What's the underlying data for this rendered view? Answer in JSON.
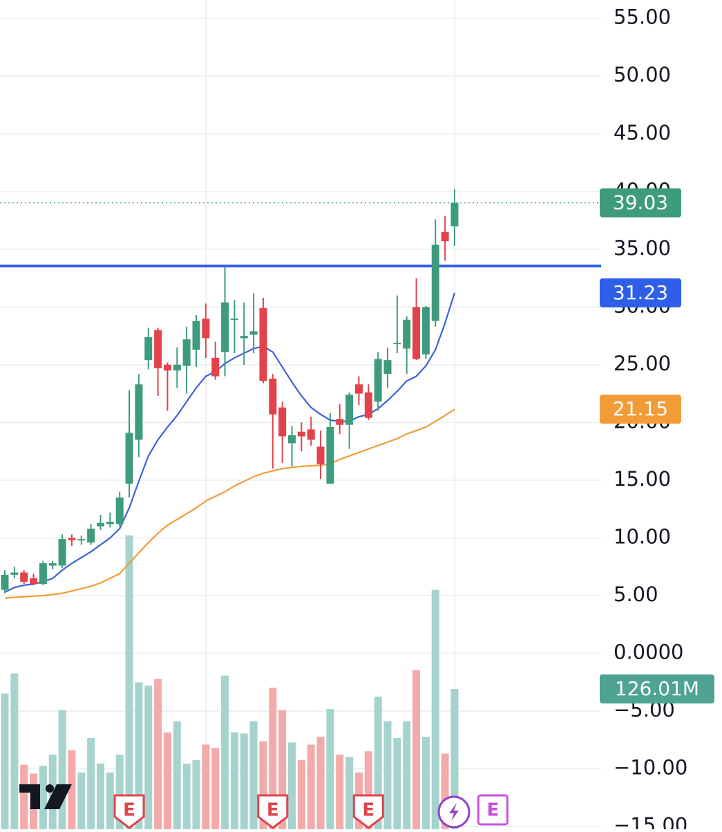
{
  "chart_data": {
    "type": "candlestick",
    "ylim": [
      -15.24,
      56.6
    ],
    "yticks": [
      {
        "value": 55,
        "label": "55.00"
      },
      {
        "value": 50,
        "label": "50.00"
      },
      {
        "value": 45,
        "label": "45.00"
      },
      {
        "value": 40,
        "label": "40.00"
      },
      {
        "value": 35,
        "label": "35.00"
      },
      {
        "value": 30,
        "label": "30.00"
      },
      {
        "value": 25,
        "label": "25.00"
      },
      {
        "value": 20,
        "label": "20.00"
      },
      {
        "value": 15,
        "label": "15.00"
      },
      {
        "value": 10,
        "label": "10.00"
      },
      {
        "value": 5,
        "label": "5.00"
      },
      {
        "value": 0,
        "label": "0.0000"
      },
      {
        "value": -5,
        "label": "−5.00"
      },
      {
        "value": -10,
        "label": "−10.00"
      },
      {
        "value": -15,
        "label": "−15.00"
      }
    ],
    "grid": true,
    "up_color": "#3f9b7d",
    "down_color": "#e2434b",
    "open": [
      5.5,
      6.8,
      7.0,
      6.5,
      6.0,
      7.6,
      7.6,
      10.0,
      9.8,
      9.6,
      11.0,
      11.2,
      11.2,
      14.7,
      18.5,
      25.4,
      28.0,
      25.0,
      24.5,
      24.9,
      26.3,
      29.0,
      25.6,
      26.1,
      28.9,
      27.3,
      27.6,
      29.9,
      23.8,
      21.3,
      18.2,
      19.2,
      19.4,
      17.9,
      14.7,
      20.3,
      19.8,
      23.3,
      22.6,
      21.8,
      24.2,
      26.8,
      26.4,
      30.0,
      25.9,
      28.8,
      36.5,
      37.0
    ],
    "high": [
      7.2,
      7.5,
      7.2,
      6.9,
      8.0,
      8.0,
      10.3,
      10.3,
      10.2,
      11.2,
      12.0,
      12.2,
      14.0,
      22.8,
      24.2,
      28.2,
      28.2,
      25.2,
      26.5,
      28.3,
      29.3,
      30.3,
      27.0,
      33.5,
      30.6,
      30.4,
      31.2,
      30.8,
      24.2,
      21.8,
      19.7,
      20.0,
      20.5,
      19.3,
      20.8,
      21.6,
      22.6,
      24.0,
      23.3,
      26.1,
      26.5,
      31.0,
      29.2,
      32.5,
      30.1,
      37.6,
      37.9,
      40.2
    ],
    "low": [
      5.2,
      6.5,
      6.0,
      5.9,
      5.9,
      7.3,
      7.4,
      9.3,
      9.4,
      9.4,
      10.7,
      10.9,
      11.0,
      13.5,
      17.0,
      24.6,
      22.3,
      21.0,
      23.0,
      22.5,
      24.8,
      25.6,
      23.7,
      24.0,
      26.0,
      25.0,
      26.0,
      23.4,
      16.0,
      16.5,
      16.2,
      17.5,
      18.0,
      15.1,
      14.7,
      19.0,
      17.7,
      21.5,
      20.2,
      21.0,
      23.0,
      26.0,
      24.2,
      25.4,
      25.5,
      28.3,
      34.0,
      35.3
    ],
    "close": [
      6.8,
      7.0,
      6.2,
      6.0,
      7.8,
      7.8,
      9.9,
      9.8,
      9.9,
      10.8,
      11.3,
      11.4,
      13.5,
      19.1,
      23.3,
      27.4,
      24.7,
      24.5,
      25.0,
      27.2,
      28.8,
      27.3,
      24.0,
      30.4,
      29.0,
      27.5,
      27.9,
      23.6,
      20.7,
      18.8,
      18.9,
      18.8,
      18.5,
      16.4,
      19.6,
      19.8,
      22.4,
      22.5,
      20.4,
      25.5,
      25.4,
      26.9,
      28.9,
      25.5,
      30.0,
      35.4,
      35.7,
      39.03
    ],
    "ema": {
      "color": "#3a62d9",
      "values": [
        5.3,
        5.7,
        5.9,
        6.0,
        6.2,
        6.5,
        7.2,
        7.8,
        8.3,
        8.8,
        9.4,
        10.0,
        10.8,
        12.6,
        14.9,
        17.1,
        18.5,
        19.6,
        20.6,
        21.8,
        23.0,
        24.0,
        24.4,
        25.1,
        25.6,
        26.0,
        26.4,
        26.6,
        26.1,
        24.8,
        23.5,
        22.3,
        21.3,
        20.7,
        20.2,
        20.1,
        20.1,
        20.5,
        20.7,
        21.2,
        21.9,
        22.7,
        23.6,
        24.0,
        24.9,
        26.3,
        28.6,
        31.23
      ]
    },
    "sma": {
      "color": "#f29c38",
      "values": [
        4.8,
        4.85,
        4.9,
        4.95,
        5.0,
        5.1,
        5.2,
        5.4,
        5.6,
        5.8,
        6.1,
        6.5,
        6.9,
        7.8,
        8.7,
        9.6,
        10.4,
        11.1,
        11.6,
        12.1,
        12.6,
        13.2,
        13.6,
        14.0,
        14.5,
        14.9,
        15.3,
        15.6,
        15.8,
        16.0,
        16.1,
        16.2,
        16.25,
        16.3,
        16.4,
        16.8,
        17.1,
        17.4,
        17.7,
        18.0,
        18.3,
        18.6,
        19.0,
        19.3,
        19.6,
        20.1,
        20.6,
        21.15
      ]
    },
    "hline": {
      "value": 33.56,
      "color": "#2f5ee8"
    },
    "price_labels": [
      {
        "value": 39.03,
        "color": "#3f9b7d"
      },
      {
        "value": 31.23,
        "color": "#2f5ee8"
      },
      {
        "value": 21.15,
        "color": "#f29c38"
      }
    ],
    "volume": {
      "up_color": "#a6d3cd",
      "down_color": "#f2aaaa",
      "values": [
        122,
        140,
        58,
        50,
        57,
        67,
        107,
        71,
        51,
        82,
        59,
        51,
        67,
        264,
        132,
        129,
        135,
        87,
        97,
        59,
        62,
        76,
        73,
        138,
        87,
        86,
        97,
        79,
        127,
        107,
        78,
        62,
        76,
        83,
        108,
        67,
        65,
        51,
        70,
        119,
        97,
        82,
        97,
        143,
        83,
        215,
        68,
        126.01
      ]
    },
    "last_volume": {
      "value": 126.01,
      "label": "126.01M",
      "color": "#4fa393"
    },
    "events": [
      {
        "bar": 13,
        "label": "E",
        "color": "#e2434b"
      },
      {
        "bar": 28,
        "label": "E",
        "color": "#e2434b"
      },
      {
        "bar": 38,
        "label": "E",
        "color": "#e2434b"
      },
      {
        "bar": 51,
        "label": "E",
        "color": "#c94fdc"
      }
    ]
  }
}
